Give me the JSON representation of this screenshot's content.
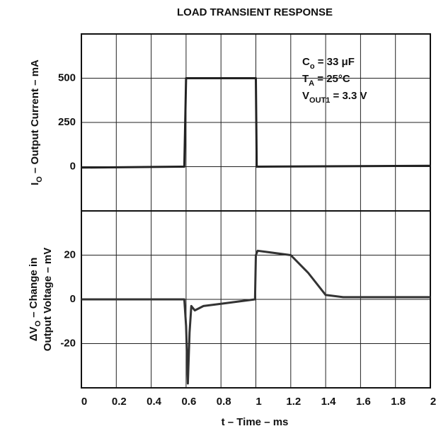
{
  "chart_data": [
    {
      "type": "line",
      "title": "LOAD TRANSIENT RESPONSE",
      "ylabel": {
        "main": "I",
        "sub": "O",
        "rest": " – Output Current – mA"
      },
      "annotations": [
        {
          "main": "C",
          "sub": "o",
          "rest": " = 33 μF"
        },
        {
          "main": "T",
          "sub": "A",
          "rest": " = 25°C"
        },
        {
          "main": "V",
          "sub": "OUT1",
          "rest": " = 3.3 V"
        }
      ],
      "xlim": [
        0,
        2
      ],
      "xticks": [
        0,
        0.2,
        0.4,
        0.6,
        0.8,
        1,
        1.2,
        1.4,
        1.6,
        1.8,
        2
      ],
      "ylim": [
        -250,
        750
      ],
      "yticks": [
        0,
        250,
        500
      ],
      "grid": true,
      "series": [
        {
          "color": "#222222",
          "x": [
            0,
            0.59,
            0.6,
            1.0,
            1.005,
            2
          ],
          "values": [
            -5,
            0,
            500,
            500,
            0,
            5
          ]
        }
      ]
    },
    {
      "type": "line",
      "ylabel": {
        "main": "ΔV",
        "sub": "O",
        "rest": " – Change in",
        "line2": "Output Voltage – mV"
      },
      "xlabel": "t – Time – ms",
      "xlim": [
        0,
        2
      ],
      "xticks": [
        0,
        0.2,
        0.4,
        0.6,
        0.8,
        1,
        1.2,
        1.4,
        1.6,
        1.8,
        2
      ],
      "ylim": [
        -40,
        40
      ],
      "yticks": [
        -20,
        0,
        20
      ],
      "grid": true,
      "series": [
        {
          "color": "#333333",
          "x": [
            0,
            0.59,
            0.6,
            0.61,
            0.62,
            0.63,
            0.65,
            0.7,
            0.8,
            0.995,
            1.0,
            1.01,
            1.2,
            1.3,
            1.4,
            1.5,
            2
          ],
          "values": [
            0,
            0,
            -12,
            -38,
            -15,
            -3,
            -5,
            -3,
            -2,
            0,
            20,
            22,
            20,
            12,
            2,
            1,
            1
          ]
        }
      ]
    }
  ]
}
